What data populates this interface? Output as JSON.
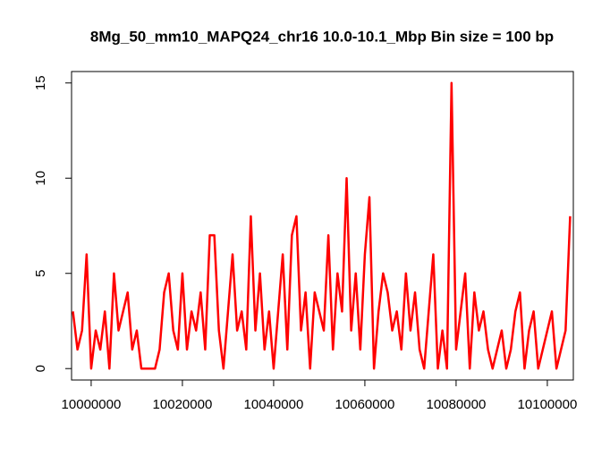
{
  "chart_data": {
    "type": "line",
    "title": "8Mg_50_mm10_MAPQ24_chr16 10.0-10.1_Mbp Bin size = 100 bp",
    "x": [
      9996000,
      9997000,
      9998000,
      9999000,
      10000000,
      10001000,
      10002000,
      10003000,
      10004000,
      10005000,
      10006000,
      10007000,
      10008000,
      10009000,
      10010000,
      10011000,
      10012000,
      10013000,
      10014000,
      10015000,
      10016000,
      10017000,
      10018000,
      10019000,
      10020000,
      10021000,
      10022000,
      10023000,
      10024000,
      10025000,
      10026000,
      10027000,
      10028000,
      10029000,
      10030000,
      10031000,
      10032000,
      10033000,
      10034000,
      10035000,
      10036000,
      10037000,
      10038000,
      10039000,
      10040000,
      10041000,
      10042000,
      10043000,
      10044000,
      10045000,
      10046000,
      10047000,
      10048000,
      10049000,
      10050000,
      10051000,
      10052000,
      10053000,
      10054000,
      10055000,
      10056000,
      10057000,
      10058000,
      10059000,
      10060000,
      10061000,
      10062000,
      10063000,
      10064000,
      10065000,
      10066000,
      10067000,
      10068000,
      10069000,
      10070000,
      10071000,
      10072000,
      10073000,
      10074000,
      10075000,
      10076000,
      10077000,
      10078000,
      10079000,
      10080000,
      10081000,
      10082000,
      10083000,
      10084000,
      10085000,
      10086000,
      10087000,
      10088000,
      10089000,
      10090000,
      10091000,
      10092000,
      10093000,
      10094000,
      10095000,
      10096000,
      10097000,
      10098000,
      10099000,
      10100000,
      10101000,
      10102000,
      10103000,
      10104000,
      10105000
    ],
    "series": [
      {
        "color": "#ff0000",
        "values": [
          3,
          1,
          2,
          6,
          0,
          2,
          1,
          3,
          0,
          5,
          2,
          3,
          4,
          1,
          2,
          0,
          0,
          0,
          0,
          1,
          4,
          5,
          2,
          1,
          5,
          1,
          3,
          2,
          4,
          1,
          7,
          7,
          2,
          0,
          3,
          6,
          2,
          3,
          1,
          8,
          2,
          5,
          1,
          3,
          0,
          3,
          6,
          1,
          7,
          8,
          2,
          4,
          0,
          4,
          3,
          2,
          7,
          1,
          5,
          3,
          10,
          2,
          5,
          1,
          6,
          9,
          0,
          3,
          5,
          4,
          2,
          3,
          1,
          5,
          2,
          4,
          1,
          0,
          3,
          6,
          0,
          2,
          0,
          15,
          1,
          3,
          5,
          0,
          4,
          2,
          3,
          1,
          0,
          1,
          2,
          0,
          1,
          3,
          4,
          0,
          2,
          3,
          0,
          1,
          2,
          3,
          0,
          1,
          2,
          8
        ]
      }
    ],
    "xlim": [
      9995700,
      10105700
    ],
    "ylim": [
      -0.6,
      15.6
    ],
    "xticks": [
      10000000,
      10020000,
      10040000,
      10060000,
      10080000,
      10100000
    ],
    "yticks": [
      0,
      5,
      10,
      15
    ]
  }
}
